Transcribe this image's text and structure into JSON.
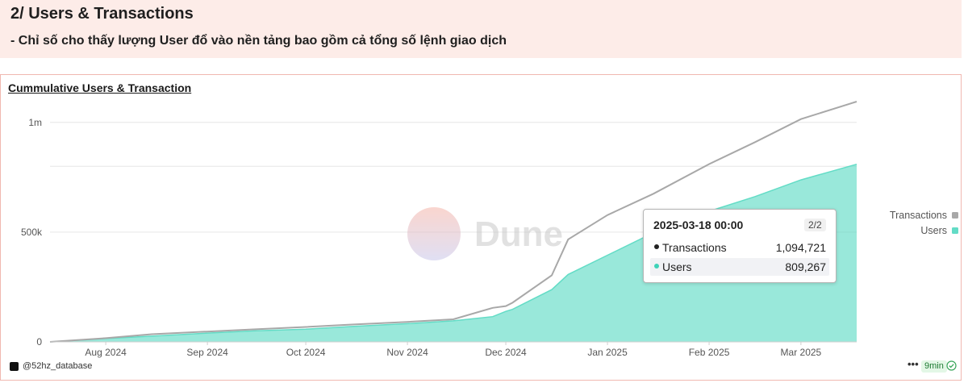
{
  "header": {
    "title": "2/ Users & Transactions",
    "note": "- Chỉ số cho thấy lượng User đổ vào nền tảng bao gồm cả tổng số lệnh giao dịch"
  },
  "chart_card": {
    "title": "Cummulative Users & Transaction",
    "watermark": "Dune"
  },
  "tooltip": {
    "date": "2025-03-18 00:00",
    "page": "2/2",
    "rows": [
      {
        "label": "Transactions",
        "value": "1,094,721"
      },
      {
        "label": "Users",
        "value": "809,267"
      }
    ]
  },
  "footer": {
    "handle": "@52hz_database",
    "more": "•••",
    "badge": "9min",
    "check_icon": "check-circle-icon"
  },
  "colors": {
    "transactions": "#a8a8a8",
    "users": "#63dcc6",
    "tooltip_transactions_dot": "#222222",
    "tooltip_users_dot": "#3fd3b8"
  },
  "chart_data": {
    "type": "area",
    "title": "Cummulative Users & Transaction",
    "x_range": [
      "2024-07-15",
      "2025-03-18"
    ],
    "xticks": [
      {
        "label": "Aug 2024",
        "date": "2024-08-01"
      },
      {
        "label": "Sep 2024",
        "date": "2024-09-01"
      },
      {
        "label": "Oct 2024",
        "date": "2024-10-01"
      },
      {
        "label": "Nov 2024",
        "date": "2024-11-01"
      },
      {
        "label": "Dec 2024",
        "date": "2024-12-01"
      },
      {
        "label": "Jan 2025",
        "date": "2025-01-01"
      },
      {
        "label": "Feb 2025",
        "date": "2025-02-01"
      },
      {
        "label": "Mar 2025",
        "date": "2025-03-01"
      }
    ],
    "yticks": [
      {
        "label": "0",
        "value": 0
      },
      {
        "label": "500k",
        "value": 500000
      },
      {
        "label": "1m",
        "value": 1000000
      }
    ],
    "ylim": [
      0,
      1080000
    ],
    "legend_position": "right",
    "grid": true,
    "series": [
      {
        "name": "Transactions",
        "style": "line",
        "points": [
          [
            "2024-07-15",
            0
          ],
          [
            "2024-08-01",
            17000
          ],
          [
            "2024-08-15",
            35000
          ],
          [
            "2024-09-01",
            47000
          ],
          [
            "2024-09-15",
            57000
          ],
          [
            "2024-10-01",
            68000
          ],
          [
            "2024-10-15",
            79000
          ],
          [
            "2024-11-01",
            91000
          ],
          [
            "2024-11-15",
            103000
          ],
          [
            "2024-11-27",
            155000
          ],
          [
            "2024-12-01",
            163000
          ],
          [
            "2024-12-03",
            178000
          ],
          [
            "2024-12-15",
            303000
          ],
          [
            "2024-12-20",
            467000
          ],
          [
            "2025-01-01",
            578000
          ],
          [
            "2025-01-15",
            675000
          ],
          [
            "2025-02-01",
            810000
          ],
          [
            "2025-02-15",
            910000
          ],
          [
            "2025-03-01",
            1015000
          ],
          [
            "2025-03-18",
            1094721
          ]
        ]
      },
      {
        "name": "Users",
        "style": "area",
        "points": [
          [
            "2024-07-15",
            0
          ],
          [
            "2024-08-01",
            15000
          ],
          [
            "2024-08-15",
            26000
          ],
          [
            "2024-09-01",
            40000
          ],
          [
            "2024-09-15",
            50000
          ],
          [
            "2024-10-01",
            58000
          ],
          [
            "2024-10-15",
            70000
          ],
          [
            "2024-11-01",
            83000
          ],
          [
            "2024-11-15",
            96000
          ],
          [
            "2024-11-27",
            115000
          ],
          [
            "2024-12-01",
            139000
          ],
          [
            "2024-12-03",
            148000
          ],
          [
            "2024-12-15",
            238000
          ],
          [
            "2024-12-20",
            307000
          ],
          [
            "2025-01-01",
            395000
          ],
          [
            "2025-01-15",
            497000
          ],
          [
            "2025-02-01",
            595000
          ],
          [
            "2025-02-15",
            662000
          ],
          [
            "2025-03-01",
            738000
          ],
          [
            "2025-03-18",
            809267
          ]
        ]
      }
    ]
  }
}
